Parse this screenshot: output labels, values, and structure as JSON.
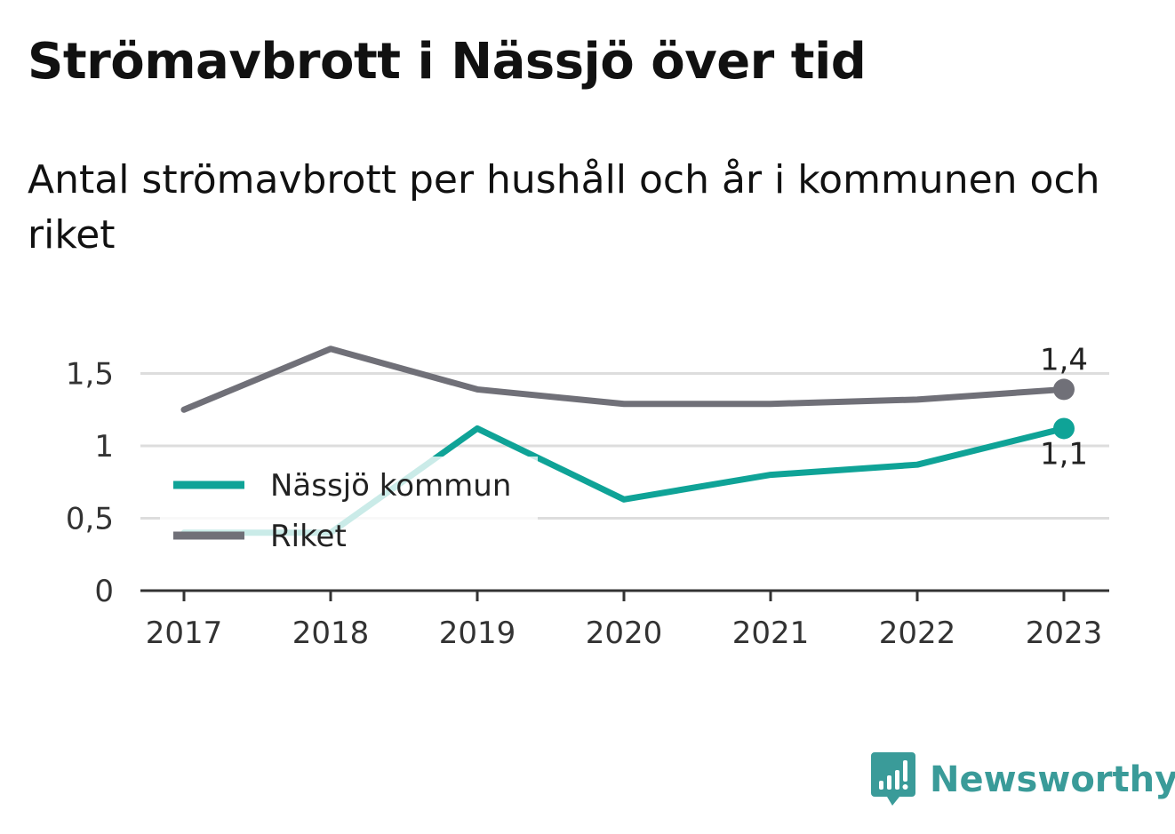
{
  "header": {
    "title": "Strömavbrott i Nässjö över tid",
    "subtitle": "Antal strömavbrott per hushåll och år i kommunen och riket"
  },
  "chart_data": {
    "type": "line",
    "x": [
      "2017",
      "2018",
      "2019",
      "2020",
      "2021",
      "2022",
      "2023"
    ],
    "series": [
      {
        "name": "Nässjö kommun",
        "color": "#0fa397",
        "values": [
          0.4,
          0.4,
          1.12,
          0.63,
          0.8,
          0.87,
          1.12
        ],
        "end_label": "1,1"
      },
      {
        "name": "Riket",
        "color": "#707078",
        "values": [
          1.25,
          1.67,
          1.39,
          1.29,
          1.29,
          1.32,
          1.39
        ],
        "end_label": "1,4"
      }
    ],
    "y_ticks": [
      {
        "value": 0,
        "label": "0"
      },
      {
        "value": 0.5,
        "label": "0,5"
      },
      {
        "value": 1,
        "label": "1"
      },
      {
        "value": 1.5,
        "label": "1,5"
      }
    ],
    "ylim": [
      0,
      1.75
    ],
    "grid": true,
    "legend_position": "bottom-left"
  },
  "branding": {
    "name": "Newsworthy",
    "color": "#3a9b99",
    "icon": "bar-chart-speech-bubble-icon"
  }
}
